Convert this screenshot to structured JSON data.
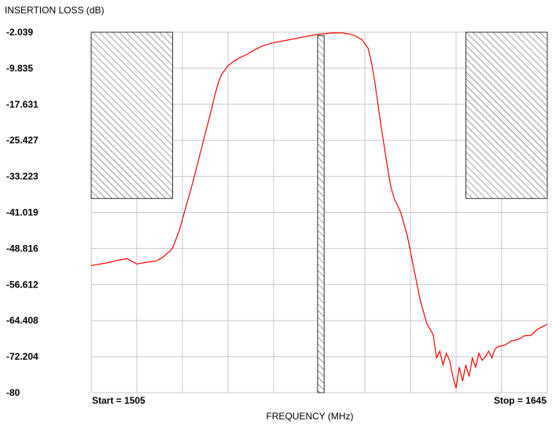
{
  "chart_data": {
    "type": "line",
    "ylabel": "INSERTION LOSS (dB)",
    "xlabel": "FREQUENCY (MHz)",
    "start_label": "Start = 1505",
    "stop_label": "Stop = 1645",
    "xlim": [
      1505,
      1645
    ],
    "ylim": [
      -80,
      -2.039
    ],
    "yticks": [
      "-2.039",
      "-9.835",
      "-17.631",
      "-25.427",
      "-33.223",
      "-41.019",
      "-48.816",
      "-56.612",
      "-64.408",
      "-72.204",
      "-80"
    ],
    "grid": true,
    "colors": {
      "trace": "#ff0000",
      "grid": "#c8c8c8",
      "mask": "#333333"
    },
    "masks": [
      {
        "x": [
          1505,
          1530
        ],
        "y": [
          -38.0,
          -2.039
        ]
      },
      {
        "x": [
          1574.5,
          1576.5
        ],
        "y": [
          -80,
          -2.8
        ]
      },
      {
        "x": [
          1620,
          1645
        ],
        "y": [
          -38.0,
          -2.039
        ]
      }
    ],
    "series": [
      {
        "x": [
          1505,
          1510,
          1513,
          1516,
          1519,
          1522,
          1525,
          1527,
          1529,
          1530,
          1532,
          1534,
          1536,
          1538,
          1540,
          1542,
          1543,
          1544,
          1545,
          1547,
          1549,
          1551,
          1553,
          1555,
          1558,
          1561,
          1564,
          1567,
          1570,
          1573,
          1576,
          1579,
          1582,
          1584,
          1586,
          1588,
          1590,
          1591,
          1592,
          1593,
          1594,
          1595,
          1596,
          1597,
          1598,
          1600,
          1602,
          1604,
          1606,
          1608,
          1610,
          1611,
          1612,
          1613,
          1614,
          1615,
          1616,
          1617,
          1618,
          1619,
          1620,
          1621,
          1622,
          1623,
          1624,
          1625,
          1626,
          1627,
          1628,
          1629,
          1630,
          1632,
          1634,
          1636,
          1638,
          1640,
          1642,
          1645
        ],
        "y": [
          -52.5,
          -51.9,
          -51.4,
          -51.0,
          -52.2,
          -51.8,
          -51.5,
          -50.7,
          -49.5,
          -48.7,
          -45.0,
          -40.0,
          -35.0,
          -29.5,
          -24.0,
          -18.5,
          -15.5,
          -13.0,
          -11.2,
          -9.3,
          -8.2,
          -7.4,
          -6.8,
          -5.9,
          -4.9,
          -4.3,
          -3.9,
          -3.5,
          -3.1,
          -2.7,
          -2.4,
          -2.2,
          -2.2,
          -2.4,
          -2.8,
          -3.6,
          -5.5,
          -8.5,
          -12.5,
          -17.5,
          -22.5,
          -27.0,
          -31.5,
          -35.5,
          -38.0,
          -41.0,
          -46.0,
          -53.0,
          -60.0,
          -65.0,
          -67.5,
          -72.5,
          -71.0,
          -74.0,
          -71.5,
          -73.0,
          -76.5,
          -79.0,
          -74.5,
          -77.5,
          -74.0,
          -76.5,
          -72.5,
          -74.5,
          -71.5,
          -73.0,
          -72.2,
          -71.0,
          -72.5,
          -70.5,
          -70.0,
          -69.7,
          -68.8,
          -68.5,
          -67.7,
          -67.6,
          -66.3,
          -65.2
        ]
      }
    ]
  }
}
